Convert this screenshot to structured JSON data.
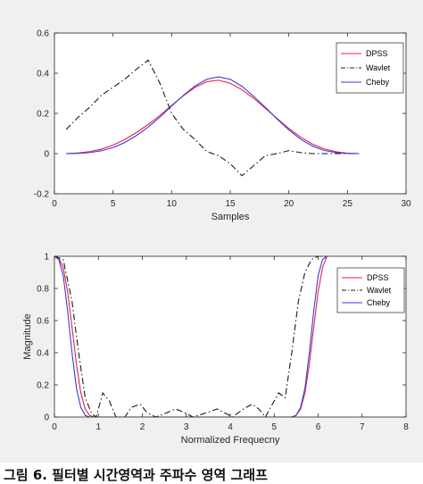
{
  "caption": "그림 6. 필터별 시간영역과 주파수 영역 그래프",
  "colors": {
    "DPSS": "#e8213c",
    "Wavlet": "#1a1a1a",
    "Cheby": "#3a3ae0",
    "axes_bg": "#ffffff",
    "figure_bg": "#f0f0f0"
  },
  "chart_data": [
    {
      "type": "line",
      "xlabel": "Samples",
      "ylabel": "",
      "xlim": [
        0,
        30
      ],
      "ylim": [
        -0.2,
        0.6
      ],
      "xticks": [
        0,
        5,
        10,
        15,
        20,
        25,
        30
      ],
      "yticks": [
        -0.2,
        0,
        0.2,
        0.4,
        0.6
      ],
      "xtick_labels": [
        "0",
        "5",
        "10",
        "15",
        "20",
        "25",
        "30"
      ],
      "ytick_labels": [
        "-0.2",
        "0",
        "0.2",
        "0.4",
        "0.6"
      ],
      "legend_position": "top-right",
      "grid": false,
      "series": [
        {
          "name": "DPSS",
          "style": "solid",
          "x": [
            1,
            2,
            3,
            4,
            5,
            6,
            7,
            8,
            9,
            10,
            11,
            12,
            13,
            14,
            15,
            16,
            17,
            18,
            19,
            20,
            21,
            22,
            23,
            24,
            25,
            26
          ],
          "values": [
            0.0,
            0.003,
            0.01,
            0.022,
            0.042,
            0.07,
            0.105,
            0.145,
            0.19,
            0.24,
            0.288,
            0.33,
            0.358,
            0.365,
            0.35,
            0.318,
            0.275,
            0.225,
            0.175,
            0.125,
            0.082,
            0.048,
            0.024,
            0.009,
            0.002,
            0.0
          ]
        },
        {
          "name": "Wavlet",
          "style": "dashdot",
          "x": [
            1,
            2,
            3,
            4,
            5,
            6,
            7,
            8,
            9,
            10,
            11,
            12,
            13,
            14,
            15,
            16,
            17,
            18,
            19,
            20,
            21,
            22,
            23,
            24,
            25,
            26
          ],
          "values": [
            0.12,
            0.18,
            0.23,
            0.29,
            0.33,
            0.37,
            0.42,
            0.465,
            0.35,
            0.2,
            0.12,
            0.07,
            0.01,
            -0.01,
            -0.05,
            -0.11,
            -0.06,
            -0.01,
            0.0,
            0.015,
            0.005,
            0.0,
            0.0,
            0.0,
            0.0,
            0.0
          ]
        },
        {
          "name": "Cheby",
          "style": "solid",
          "x": [
            1,
            2,
            3,
            4,
            5,
            6,
            7,
            8,
            9,
            10,
            11,
            12,
            13,
            14,
            15,
            16,
            17,
            18,
            19,
            20,
            21,
            22,
            23,
            24,
            25,
            26
          ],
          "values": [
            0.0,
            0.001,
            0.005,
            0.014,
            0.03,
            0.055,
            0.09,
            0.132,
            0.182,
            0.237,
            0.29,
            0.337,
            0.37,
            0.382,
            0.37,
            0.335,
            0.285,
            0.23,
            0.172,
            0.118,
            0.072,
            0.038,
            0.016,
            0.005,
            0.001,
            0.0
          ]
        }
      ]
    },
    {
      "type": "line",
      "xlabel": "Normalized Frequecny",
      "ylabel": "Magnitude",
      "xlim": [
        0,
        8
      ],
      "ylim": [
        0,
        1
      ],
      "xticks": [
        0,
        1,
        2,
        3,
        4,
        5,
        6,
        7,
        8
      ],
      "yticks": [
        0,
        0.2,
        0.4,
        0.6,
        0.8,
        1
      ],
      "xtick_labels": [
        "0",
        "1",
        "2",
        "3",
        "4",
        "5",
        "6",
        "7",
        "8"
      ],
      "ytick_labels": [
        "0",
        "0.2",
        "0.4",
        "0.6",
        "0.8",
        "1"
      ],
      "legend_position": "top-right",
      "grid": false,
      "series": [
        {
          "name": "DPSS",
          "style": "solid",
          "x": [
            0,
            0.1,
            0.2,
            0.3,
            0.4,
            0.5,
            0.6,
            0.7,
            0.8,
            0.9,
            1.0,
            5.3,
            5.4,
            5.5,
            5.6,
            5.7,
            5.8,
            5.9,
            6.0,
            6.1,
            6.2
          ],
          "values": [
            1.0,
            0.99,
            0.93,
            0.78,
            0.56,
            0.33,
            0.15,
            0.05,
            0.01,
            0.0,
            0.0,
            0.0,
            0.0,
            0.01,
            0.05,
            0.15,
            0.33,
            0.56,
            0.78,
            0.93,
            1.0
          ]
        },
        {
          "name": "Wavlet",
          "style": "dashdot",
          "x": [
            0,
            0.2,
            0.4,
            0.55,
            0.7,
            0.85,
            0.95,
            1.1,
            1.25,
            1.4,
            1.6,
            1.75,
            1.95,
            2.1,
            2.3,
            2.5,
            2.75,
            2.95,
            3.15,
            3.5,
            3.7,
            3.85,
            4.05,
            4.3,
            4.5,
            4.65,
            4.8,
            5.0,
            5.1,
            5.25,
            5.4,
            5.55,
            5.7,
            5.85,
            6.0,
            6.1
          ],
          "values": [
            1.0,
            0.98,
            0.72,
            0.4,
            0.12,
            0.02,
            0.0,
            0.15,
            0.1,
            0.0,
            0.0,
            0.06,
            0.08,
            0.03,
            0.0,
            0.02,
            0.05,
            0.03,
            0.0,
            0.03,
            0.05,
            0.03,
            0.0,
            0.05,
            0.08,
            0.05,
            0.0,
            0.1,
            0.15,
            0.12,
            0.4,
            0.72,
            0.9,
            0.98,
            1.0,
            1.0
          ]
        },
        {
          "name": "Cheby",
          "style": "solid",
          "x": [
            0,
            0.1,
            0.2,
            0.3,
            0.4,
            0.5,
            0.6,
            0.7,
            0.8,
            0.9,
            5.4,
            5.5,
            5.6,
            5.7,
            5.8,
            5.9,
            6.0,
            6.1,
            6.2
          ],
          "values": [
            1.0,
            0.98,
            0.88,
            0.66,
            0.4,
            0.18,
            0.06,
            0.01,
            0.0,
            0.0,
            0.0,
            0.01,
            0.06,
            0.18,
            0.4,
            0.66,
            0.88,
            0.98,
            1.0
          ]
        }
      ]
    }
  ]
}
